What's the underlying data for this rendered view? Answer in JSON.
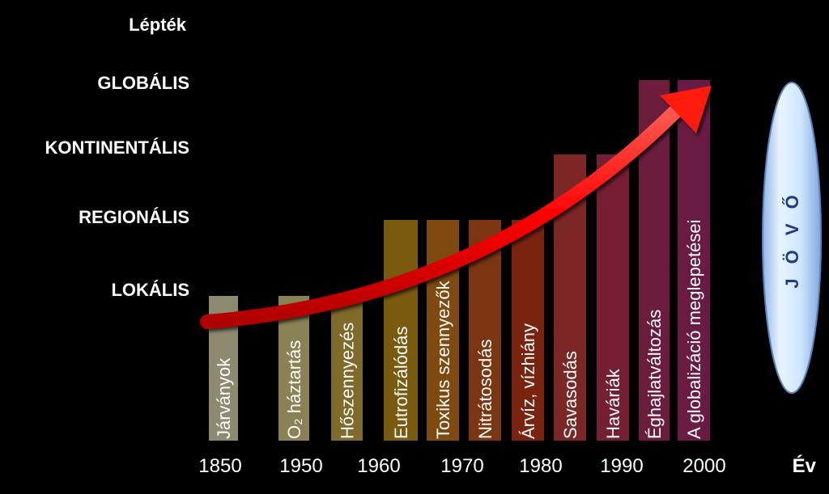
{
  "chart_data": {
    "type": "bar",
    "title": "",
    "ylabel": "Lépték",
    "xlabel": "Év",
    "scale_levels": [
      "LOKÁLIS",
      "REGIONÁLIS",
      "KONTINENTÁLIS",
      "GLOBÁLIS"
    ],
    "x_ticks": [
      "1850",
      "1950",
      "1960",
      "1970",
      "1980",
      "1990",
      "2000"
    ],
    "bars": [
      {
        "label": "Járványok",
        "level": 1,
        "color": "#8d8a70"
      },
      {
        "label": "O₂ háztartás",
        "level": 1,
        "color": "#8a8154"
      },
      {
        "label": "Hőszennyezés",
        "level": 1,
        "color": "#7f6a2a"
      },
      {
        "label": "Eutrofizálódás",
        "level": 2,
        "color": "#7a5a0e"
      },
      {
        "label": "Toxikus szennyezők",
        "level": 2,
        "color": "#7e4a10"
      },
      {
        "label": "Nitrátosodás",
        "level": 2,
        "color": "#7b3510"
      },
      {
        "label": "Árvíz, vízhiány",
        "level": 2,
        "color": "#7a2410"
      },
      {
        "label": "Savasodás",
        "level": 3,
        "color": "#7b2726"
      },
      {
        "label": "Haváriák",
        "level": 3,
        "color": "#761e33"
      },
      {
        "label": "Éghajlatváltozás",
        "level": 4,
        "color": "#6c1d3d"
      },
      {
        "label": "A globalizáció meglepetései",
        "level": 4,
        "color": "#6a1b44"
      }
    ],
    "trend_arrow": {
      "color": "#ff1010"
    },
    "future_label": "J Ö V Ő",
    "grid": false,
    "legend": "none"
  }
}
